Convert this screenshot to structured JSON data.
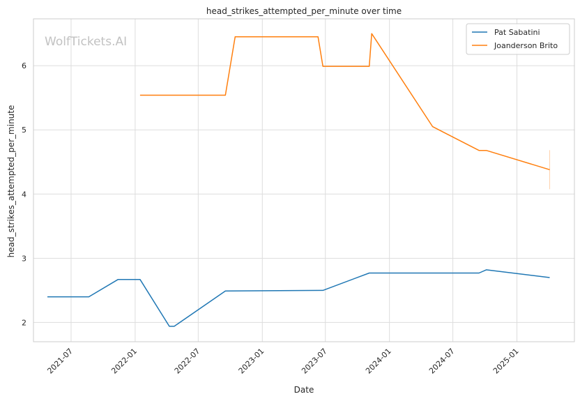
{
  "chart_data": {
    "type": "line",
    "title": "head_strikes_attempted_per_minute over time",
    "xlabel": "Date",
    "ylabel": "head_strikes_attempted_per_minute",
    "watermark": "WolfTickets.AI",
    "x_ticks": [
      "2021-07",
      "2022-01",
      "2022-07",
      "2023-01",
      "2023-07",
      "2024-01",
      "2024-07",
      "2025-01"
    ],
    "y_ticks": [
      2,
      3,
      4,
      5,
      6
    ],
    "xlim": [
      "2021-03-15",
      "2025-06-15"
    ],
    "ylim": [
      1.7,
      6.73
    ],
    "grid": true,
    "legend_position": "top-right",
    "series": [
      {
        "name": "Pat Sabatini",
        "color": "#1f77b4",
        "points": [
          [
            "2021-04-24",
            2.4
          ],
          [
            "2021-08-21",
            2.4
          ],
          [
            "2021-11-13",
            2.67
          ],
          [
            "2022-01-15",
            2.67
          ],
          [
            "2022-04-09",
            1.94
          ],
          [
            "2022-04-23",
            1.94
          ],
          [
            "2022-09-17",
            2.49
          ],
          [
            "2023-06-24",
            2.5
          ],
          [
            "2023-11-04",
            2.77
          ],
          [
            "2024-09-14",
            2.77
          ],
          [
            "2024-10-05",
            2.82
          ],
          [
            "2025-04-05",
            2.7
          ]
        ]
      },
      {
        "name": "Joanderson Brito",
        "color": "#ff7f0e",
        "points": [
          [
            "2022-01-15",
            5.54
          ],
          [
            "2022-09-17",
            5.54
          ],
          [
            "2022-10-15",
            6.45
          ],
          [
            "2023-06-10",
            6.45
          ],
          [
            "2023-06-24",
            5.99
          ],
          [
            "2023-11-04",
            5.99
          ],
          [
            "2023-11-11",
            6.5
          ],
          [
            "2024-05-04",
            5.05
          ],
          [
            "2024-09-14",
            4.68
          ],
          [
            "2024-10-05",
            4.68
          ],
          [
            "2025-04-05",
            4.38
          ]
        ]
      }
    ]
  }
}
